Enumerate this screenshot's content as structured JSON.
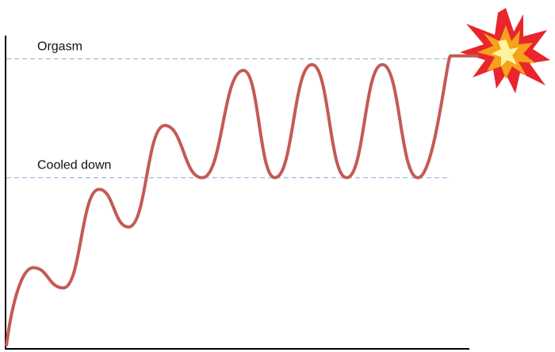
{
  "chart_data": {
    "type": "line",
    "x": [
      0,
      5.8,
      12.3,
      20,
      26.4,
      34.2,
      42.3,
      51.2,
      58,
      66,
      73.5,
      81.2,
      88.9,
      95.9,
      102
    ],
    "values": [
      1,
      28,
      21,
      55,
      42,
      77,
      59,
      96,
      59,
      98,
      59,
      98,
      59,
      101,
      101
    ],
    "color": "#c45a55",
    "xlim": [
      0,
      100
    ],
    "ylim": [
      0,
      108
    ],
    "reference_lines": [
      {
        "label": "Orgasm",
        "value": 100
      },
      {
        "label": "Cooled down",
        "value": 59
      }
    ],
    "reference_color": "#a9c3df"
  }
}
